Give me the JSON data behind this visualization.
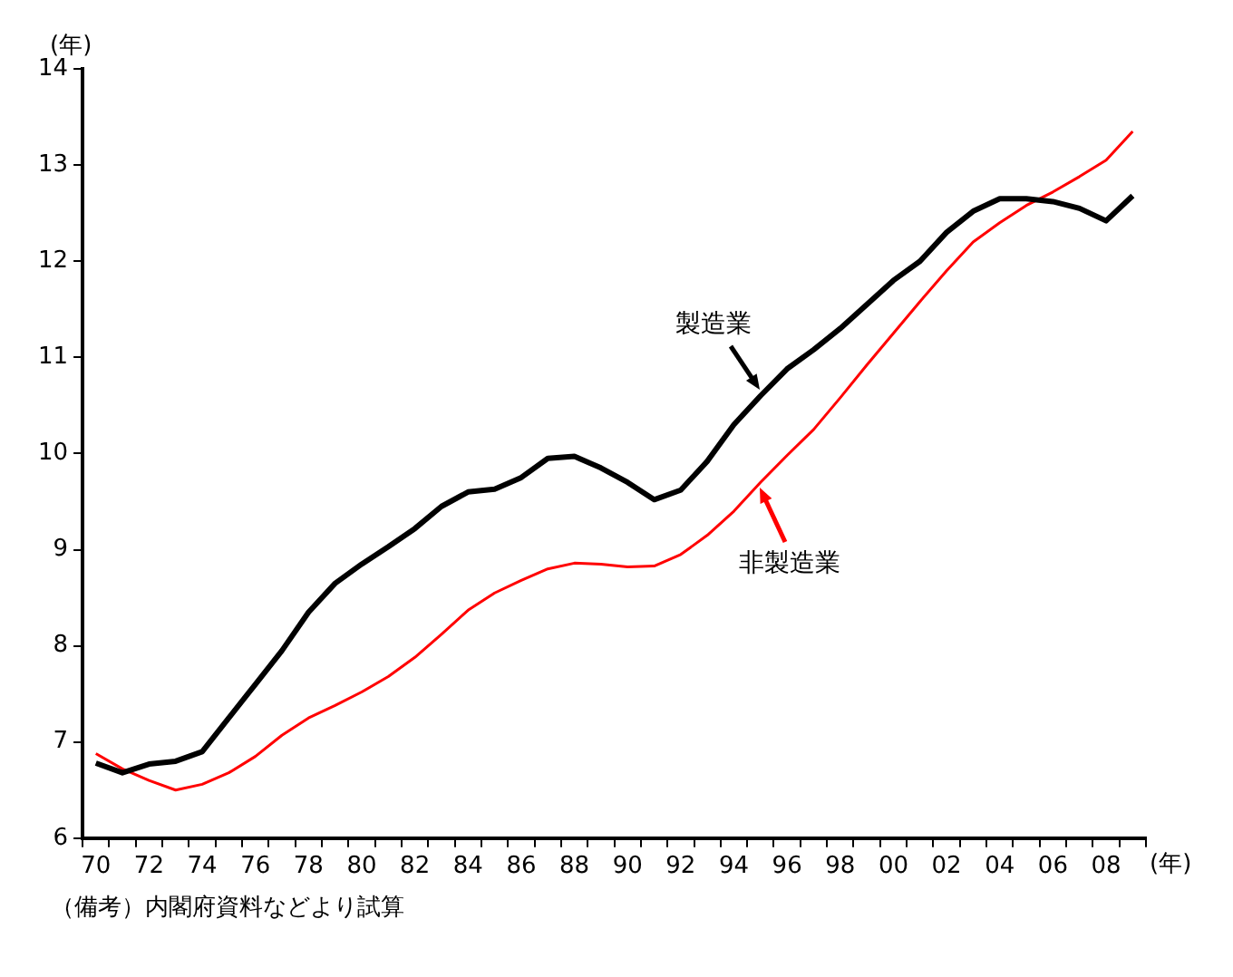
{
  "chart_data": {
    "type": "line",
    "xlabel": "(年)",
    "ylabel": "(年)",
    "categories": [
      "70",
      null,
      "72",
      null,
      "74",
      null,
      "76",
      null,
      "78",
      null,
      "80",
      null,
      "82",
      null,
      "84",
      null,
      "86",
      null,
      "88",
      null,
      "90",
      null,
      "92",
      null,
      "94",
      null,
      "96",
      null,
      "98",
      null,
      "00",
      null,
      "02",
      null,
      "04",
      null,
      "06",
      null,
      "08",
      null
    ],
    "series": [
      {
        "name": "製造業",
        "color": "#000000",
        "values": [
          6.78,
          6.68,
          6.77,
          6.8,
          6.9,
          7.25,
          7.6,
          7.95,
          8.35,
          8.65,
          8.85,
          9.03,
          9.22,
          9.45,
          9.6,
          9.63,
          9.75,
          9.95,
          9.97,
          9.85,
          9.7,
          9.52,
          9.62,
          9.92,
          10.3,
          10.6,
          10.88,
          11.08,
          11.3,
          11.55,
          11.8,
          12.0,
          12.3,
          12.52,
          12.65,
          12.65,
          12.62,
          12.55,
          12.42,
          12.68
        ]
      },
      {
        "name": "非製造業",
        "color": "#ff0000",
        "values": [
          6.88,
          6.72,
          6.6,
          6.5,
          6.56,
          6.68,
          6.85,
          7.07,
          7.25,
          7.38,
          7.52,
          7.68,
          7.88,
          8.12,
          8.37,
          8.55,
          8.68,
          8.8,
          8.86,
          8.85,
          8.82,
          8.83,
          8.95,
          9.15,
          9.4,
          9.7,
          9.98,
          10.25,
          10.58,
          10.92,
          11.25,
          11.58,
          11.9,
          12.2,
          12.4,
          12.58,
          12.72,
          12.88,
          13.05,
          13.35
        ]
      }
    ],
    "ylim": [
      6,
      14
    ],
    "yticks": [
      6,
      7,
      8,
      9,
      10,
      11,
      12,
      13,
      14
    ],
    "annotations": [
      "（備考）内閣府資料などより試算"
    ],
    "grid": false,
    "marker": "none",
    "line_style": "solid"
  }
}
